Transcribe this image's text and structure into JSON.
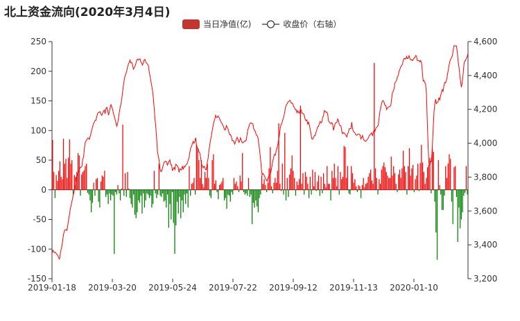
{
  "chart_data": {
    "type": "bar+line",
    "title": "北上资金流向(2020年3月4日)",
    "legend": [
      {
        "name": "当日净值(亿)",
        "type": "bar"
      },
      {
        "name": "收盘价（右轴）",
        "type": "line"
      }
    ],
    "x_ticks": [
      "2019-01-18",
      "2019-03-20",
      "2019-05-24",
      "2019-07-22",
      "2019-09-12",
      "2019-11-13",
      "2020-01-10"
    ],
    "y_left": {
      "min": -150,
      "max": 250,
      "ticks": [
        "-150",
        "-100",
        "-50",
        "0",
        "50",
        "100",
        "150",
        "200",
        "250"
      ]
    },
    "y_right": {
      "min": 3200,
      "max": 4600,
      "ticks": [
        "3,200",
        "3,400",
        "3,600",
        "3,800",
        "4,000",
        "4,200",
        "4,400",
        "4,600"
      ]
    },
    "colors": {
      "bar_positive": "#ff0000",
      "bar_negative": "#008000",
      "line": "#ff0000",
      "legend_bar": "#c23531"
    },
    "series": [
      {
        "name": "当日净值(亿)",
        "type": "bar",
        "values": [
          84,
          30,
          -14,
          25,
          15,
          32,
          48,
          22,
          18,
          86,
          44,
          52,
          20,
          54,
          85,
          44,
          50,
          -8,
          25,
          22,
          30,
          62,
          58,
          -10,
          26,
          30,
          33,
          40,
          44,
          -5,
          -8,
          -18,
          -38,
          -22,
          12,
          -10,
          18,
          20,
          -20,
          -30,
          14,
          24,
          22,
          32,
          -12,
          -8,
          -24,
          -6,
          -18,
          -8,
          -10,
          -108,
          -4,
          -8,
          8,
          -6,
          -18,
          2,
          110,
          -10,
          28,
          -12,
          30,
          2,
          -14,
          -24,
          -30,
          -8,
          -42,
          -48,
          -38,
          -18,
          -22,
          -10,
          -40,
          -6,
          -30,
          -18,
          -6,
          -8,
          -14,
          -10,
          -30,
          -24,
          32,
          -6,
          -14,
          -8,
          44,
          -10,
          -12,
          -6,
          -20,
          -18,
          -30,
          -8,
          -64,
          -24,
          -50,
          -4,
          -56,
          -108,
          -60,
          -20,
          -40,
          -12,
          -48,
          -18,
          -38,
          -8,
          -24,
          -6,
          -30,
          40,
          -10,
          10,
          12,
          20,
          -8,
          77,
          70,
          50,
          20,
          50,
          10,
          4,
          30,
          20,
          44,
          20,
          -10,
          -14,
          50,
          60,
          10,
          16,
          -4,
          -16,
          8,
          10,
          14,
          20,
          -18,
          -14,
          -32,
          -8,
          -10,
          -20,
          -4,
          -8,
          20,
          10,
          14,
          6,
          -4,
          24,
          14,
          62,
          -4,
          -8,
          -6,
          -10,
          20,
          -12,
          -8,
          -58,
          -22,
          -30,
          -18,
          -28,
          -38,
          -14,
          -8,
          24,
          10,
          18,
          8,
          -4,
          12,
          36,
          72,
          6,
          -6,
          12,
          20,
          12,
          32,
          112,
          10,
          -2,
          44,
          -8,
          96,
          -18,
          20,
          -12,
          26,
          36,
          58,
          32,
          20,
          -10,
          14,
          8,
          18,
          142,
          10,
          28,
          -8,
          30,
          22,
          10,
          -14,
          22,
          -8,
          34,
          6,
          30,
          -2,
          14,
          24,
          -10,
          22,
          -6,
          28,
          10,
          4,
          40,
          10,
          10,
          -18,
          32,
          20,
          44,
          20,
          6,
          40,
          -8,
          30,
          18,
          22,
          74,
          72,
          20,
          40,
          -6,
          -8,
          40,
          28,
          12,
          18,
          6,
          -4,
          8,
          6,
          -14,
          8,
          20,
          4,
          10,
          12,
          22,
          28,
          34,
          16,
          10,
          214,
          36,
          20,
          -8,
          18,
          10,
          34,
          40,
          46,
          38,
          30,
          24,
          20,
          20,
          56,
          24,
          40,
          28,
          10,
          -4,
          26,
          34,
          20,
          36,
          66,
          40,
          30,
          -8,
          40,
          70,
          24,
          36,
          42,
          -4,
          18,
          24,
          44,
          -2,
          45,
          76,
          46,
          30,
          10,
          20,
          38,
          42,
          54,
          -6,
          70,
          64,
          -20,
          -72,
          -118,
          50,
          8,
          -8,
          -34,
          -34,
          -10,
          40,
          20,
          44,
          60,
          52,
          -20,
          -58,
          38,
          40,
          -12,
          -88,
          -30,
          -65,
          -50,
          -38,
          -10,
          -5,
          40,
          -8
        ]
      },
      {
        "name": "收盘价（右轴）",
        "type": "line",
        "values": [
          3350,
          3368,
          3360,
          3354,
          3357,
          3349,
          3342,
          3338,
          3323,
          3316,
          3347,
          3373,
          3393,
          3431,
          3464,
          3483,
          3490,
          3489,
          3485,
          3516,
          3548,
          3577,
          3610,
          3634,
          3656,
          3680,
          3702,
          3724,
          3747,
          3790,
          3808,
          3819,
          3833,
          3846,
          3857,
          3858,
          3863,
          3904,
          3919,
          3969,
          4005,
          4013,
          4021,
          4030,
          4030,
          4023,
          4040,
          4058,
          4080,
          4098,
          4116,
          4124,
          4136,
          4136,
          4159,
          4178,
          4180,
          4184,
          4186,
          4170,
          4164,
          4178,
          4190,
          4196,
          4173,
          4206,
          4212,
          4198,
          4166,
          4184,
          4209,
          4228,
          4215,
          4198,
          4176,
          4159,
          4140,
          4120,
          4100,
          4116,
          4145,
          4180,
          4210,
          4230,
          4260,
          4302,
          4341,
          4375,
          4398,
          4410,
          4426,
          4450,
          4466,
          4478,
          4491,
          4474,
          4477,
          4465,
          4437,
          4445,
          4455,
          4471,
          4490,
          4497,
          4491,
          4495,
          4498,
          4479,
          4473,
          4461,
          4474,
          4492,
          4495,
          4478,
          4473,
          4466,
          4460,
          4425,
          4397,
          4371,
          4341,
          4314,
          4268,
          4210,
          4148,
          4096,
          4030,
          3953,
          3924,
          3899,
          3852,
          3833,
          3833,
          3854,
          3870,
          3888,
          3891,
          3895,
          3888,
          3871,
          3883,
          3895,
          3902,
          3872,
          3872,
          3840,
          3847,
          3857,
          3844,
          3876,
          3873,
          3866,
          3857,
          3828,
          3850,
          3845,
          3842,
          3866,
          3845,
          3863,
          3859,
          3869,
          3876,
          3881,
          3900,
          3913,
          3947,
          3971,
          3981,
          3997,
          4011,
          3999,
          4009,
          4033,
          3993,
          3974,
          3966,
          3950,
          3942,
          3914,
          3878,
          3865,
          3855,
          3865,
          3857,
          3843,
          3847,
          3885,
          3912,
          3957,
          3989,
          4020,
          4045,
          4077,
          4103,
          4127,
          4140,
          4165,
          4153,
          4152,
          4161,
          4154,
          4143,
          4131,
          4122,
          4114,
          4104,
          4091,
          4078,
          4080,
          4104,
          4094,
          4085,
          4065,
          4049,
          4051,
          4040,
          4015,
          4017,
          4011,
          3995,
          4008,
          4023,
          4035,
          4024,
          4005,
          4014,
          4032,
          4017,
          4003,
          4003,
          4007,
          4014,
          4012,
          4020,
          4055,
          4082,
          4095,
          4113,
          4119,
          4120,
          4115,
          4114,
          4084,
          4076,
          4067,
          4049,
          4046,
          4034,
          3999,
          3958,
          3916,
          3856,
          3813,
          3822,
          3815,
          3805,
          3792,
          3786,
          3775,
          3794,
          3804,
          3815,
          3820,
          3839,
          3869,
          3895,
          3918,
          3934,
          3930,
          3956,
          3971,
          3993,
          4023,
          4053,
          4093,
          4111,
          4122,
          4138,
          4155,
          4176,
          4206,
          4224,
          4231,
          4243,
          4244,
          4253,
          4252,
          4237,
          4238,
          4233,
          4216,
          4211,
          4198,
          4199,
          4180,
          4192,
          4181,
          4177,
          4197,
          4198,
          4179,
          4175,
          4175,
          4162,
          4139,
          4133,
          4138,
          4113,
          4125,
          4104,
          4083,
          4049,
          4025,
          4024,
          4034,
          4045,
          4046,
          4065,
          4080,
          4097,
          4099,
          4117,
          4129,
          4120,
          4125,
          4152,
          4162,
          4193,
          4190,
          4182,
          4184,
          4173,
          4132,
          4125,
          4119,
          4115,
          4121,
          4113,
          4076,
          4097,
          4117,
          4121,
          4122,
          4143,
          4135,
          4110,
          4104,
          4102,
          4070,
          4056,
          4063,
          4060,
          4054,
          4047,
          4037,
          4054,
          4066,
          4086,
          4085,
          4085,
          4124,
          4086,
          4069,
          4066,
          4059,
          4048,
          4047,
          4052,
          4053,
          4053,
          4050,
          4025,
          4035,
          4046,
          4026,
          4016,
          4012,
          4012,
          4018,
          4024,
          4031,
          4046,
          4048,
          4057,
          4062,
          4043,
          4064,
          4079,
          4071,
          4088,
          4095,
          4098,
          4109,
          4152,
          4189,
          4209,
          4236,
          4251,
          4251,
          4241,
          4223,
          4223,
          4199,
          4210,
          4211,
          4216,
          4218,
          4221,
          4262,
          4300,
          4306,
          4323,
          4357,
          4363,
          4372,
          4392,
          4400,
          4425,
          4437,
          4452,
          4456,
          4466,
          4488,
          4501,
          4498,
          4497,
          4513,
          4499,
          4502,
          4517,
          4498,
          4492,
          4494,
          4488,
          4494,
          4503,
          4505,
          4518,
          4514,
          4488,
          4488,
          4489,
          4480,
          4488,
          4476,
          4422,
          4367,
          4371,
          4358,
          4346,
          4286,
          4122,
          3981,
          3877,
          3869,
          3894,
          3892,
          3973,
          4082,
          4180,
          4230,
          4260,
          4234,
          4241,
          4245,
          4270,
          4254,
          4281,
          4300,
          4316,
          4306,
          4341,
          4359,
          4357,
          4369,
          4396,
          4426,
          4455,
          4480,
          4495,
          4504,
          4513,
          4542,
          4575,
          4576,
          4574,
          4575,
          4545,
          4487,
          4455,
          4409,
          4366,
          4331,
          4354,
          4402,
          4459,
          4486,
          4487,
          4501,
          4510,
          4532
        ]
      }
    ]
  }
}
